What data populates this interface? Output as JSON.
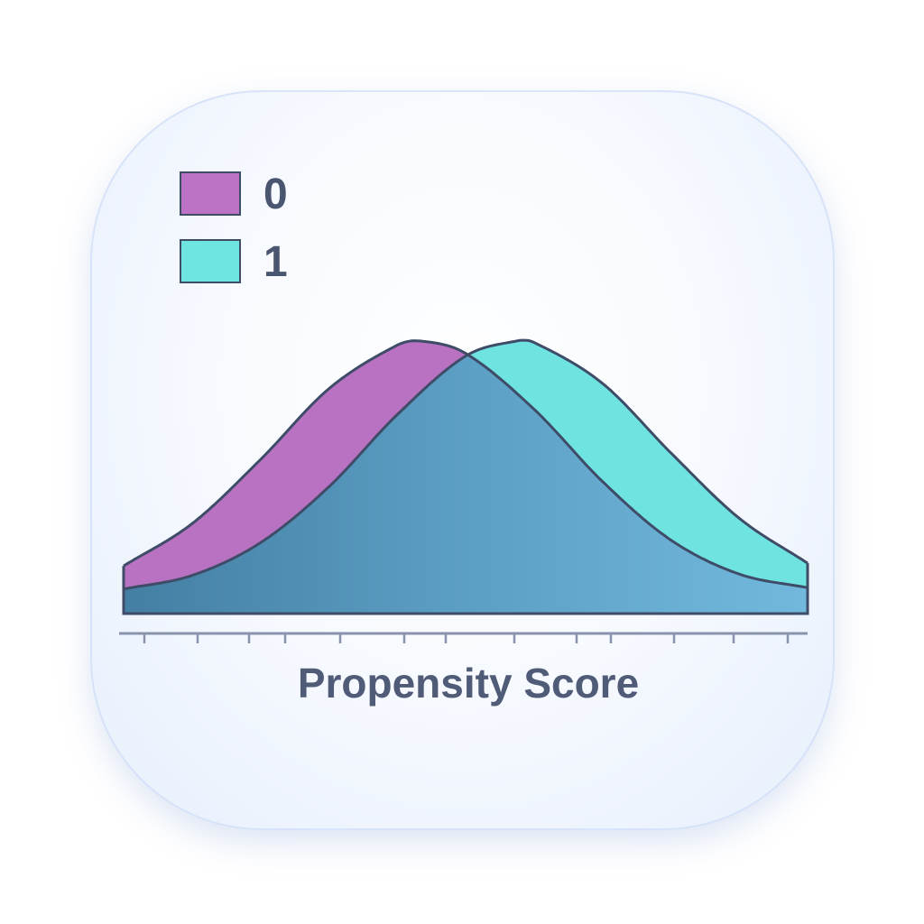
{
  "chart_data": {
    "type": "area",
    "xlabel": "Propensity Score",
    "ylabel": "",
    "title": "",
    "xlim": [
      0,
      1
    ],
    "grid": false,
    "legend": {
      "placement": "top-left",
      "entries": [
        "0",
        "1"
      ]
    },
    "series": [
      {
        "name": "0",
        "color": "#b972c2",
        "x": [
          0,
          0.1,
          0.2,
          0.3,
          0.4,
          0.435,
          0.5,
          0.6,
          0.7,
          0.8,
          0.9,
          1.0
        ],
        "y": [
          0.35,
          0.66,
          1.13,
          1.65,
          1.97,
          2.0,
          1.91,
          1.5,
          0.97,
          0.54,
          0.29,
          0.19
        ]
      },
      {
        "name": "1",
        "color": "#6ee3e0",
        "x": [
          0,
          0.1,
          0.2,
          0.3,
          0.4,
          0.5,
          0.574,
          0.6,
          0.7,
          0.8,
          0.9,
          1.0
        ],
        "y": [
          0.18,
          0.28,
          0.52,
          0.93,
          1.46,
          1.89,
          2.0,
          1.99,
          1.69,
          1.18,
          0.7,
          0.37
        ]
      }
    ],
    "overlap_color": "#5b9fc4",
    "outline_color": "#3f4c68"
  }
}
